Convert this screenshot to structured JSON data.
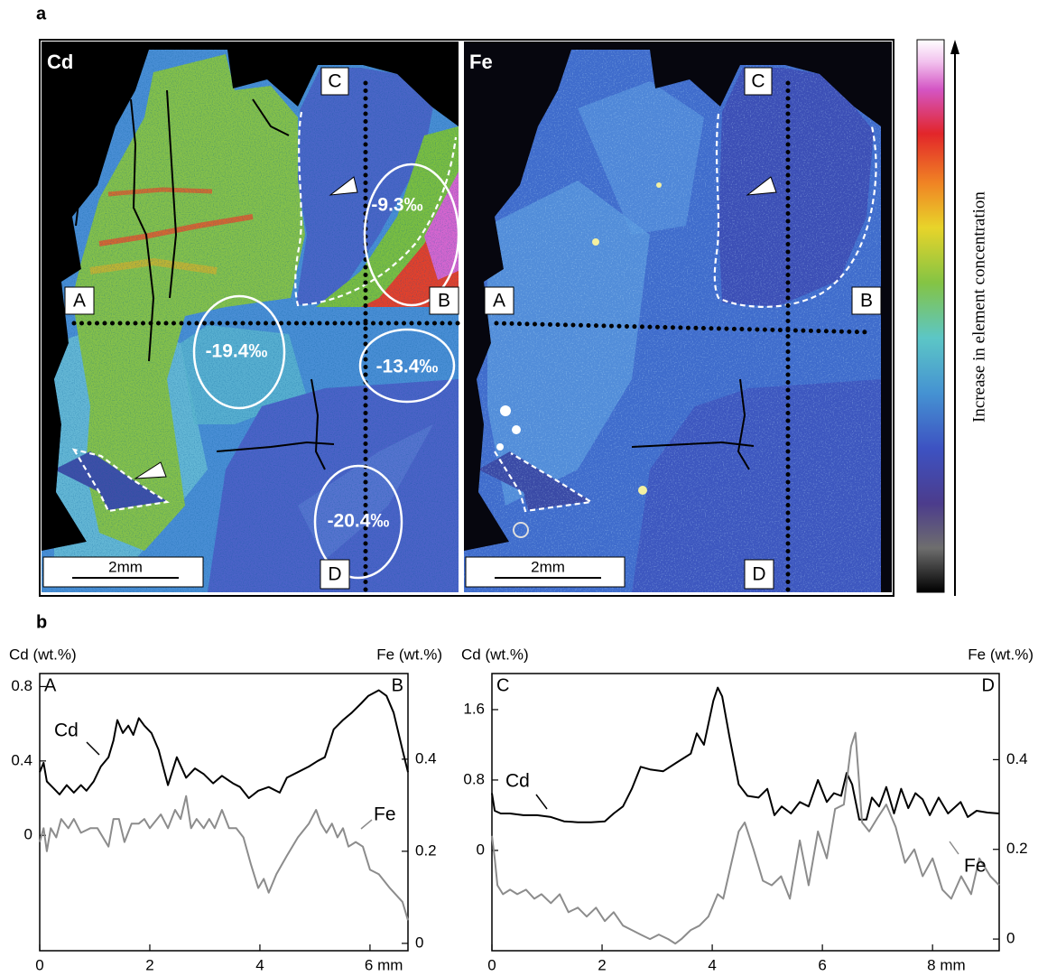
{
  "panel_labels": [
    "a",
    "b"
  ],
  "maps": [
    {
      "element": "Cd",
      "markers": [
        "A",
        "B",
        "C",
        "D"
      ],
      "scale_bar": "2mm",
      "isotope_values": [
        "-9.3‰",
        "-19.4‰",
        "-13.4‰",
        "-20.4‰"
      ]
    },
    {
      "element": "Fe",
      "markers": [
        "A",
        "B",
        "C",
        "D"
      ],
      "scale_bar": "2mm"
    }
  ],
  "colorbar_label": "Increase in element concentration",
  "chart_data": [
    {
      "type": "line",
      "y_label": "Cd (wt.%)",
      "y2_label": "Fe (wt.%)",
      "annotations": [
        "A",
        "B"
      ],
      "xlim": [
        0,
        6.69
      ],
      "xticks": [
        0,
        2,
        4,
        {
          "value": 6,
          "label": "6 mm"
        }
      ],
      "ylim": [
        -0.62,
        0.87
      ],
      "yticks": [
        0,
        0.4,
        0.8
      ],
      "y2lim": [
        -0.016,
        0.586
      ],
      "y2ticks": [
        0,
        0.2,
        0.4
      ],
      "series": [
        {
          "name": "Cd",
          "color": "#000000",
          "x": [
            0,
            0.07,
            0.13,
            0.23,
            0.36,
            0.49,
            0.62,
            0.75,
            0.85,
            0.98,
            1.11,
            1.25,
            1.34,
            1.41,
            1.51,
            1.61,
            1.7,
            1.8,
            1.9,
            2.03,
            2.16,
            2.33,
            2.49,
            2.66,
            2.82,
            2.98,
            3.15,
            3.31,
            3.51,
            3.64,
            3.8,
            3.97,
            4.16,
            4.36,
            4.49,
            4.69,
            4.89,
            5.05,
            5.18,
            5.34,
            5.51,
            5.67,
            5.84,
            5.97,
            6.16,
            6.3,
            6.43,
            6.59,
            6.69
          ],
          "values": [
            0.34,
            0.39,
            0.29,
            0.26,
            0.22,
            0.27,
            0.23,
            0.27,
            0.24,
            0.29,
            0.37,
            0.42,
            0.51,
            0.62,
            0.55,
            0.59,
            0.54,
            0.63,
            0.59,
            0.55,
            0.46,
            0.27,
            0.42,
            0.31,
            0.36,
            0.33,
            0.28,
            0.32,
            0.28,
            0.26,
            0.2,
            0.24,
            0.26,
            0.23,
            0.31,
            0.34,
            0.37,
            0.4,
            0.42,
            0.57,
            0.62,
            0.66,
            0.71,
            0.75,
            0.78,
            0.75,
            0.66,
            0.46,
            0.34
          ]
        },
        {
          "name": "Fe",
          "color": "#8c8c8c",
          "axis": "y2",
          "x": [
            0,
            0.07,
            0.13,
            0.2,
            0.3,
            0.39,
            0.52,
            0.62,
            0.75,
            0.92,
            1.05,
            1.25,
            1.34,
            1.44,
            1.54,
            1.67,
            1.8,
            1.9,
            2.0,
            2.2,
            2.33,
            2.46,
            2.56,
            2.66,
            2.75,
            2.85,
            2.98,
            3.08,
            3.18,
            3.31,
            3.44,
            3.57,
            3.7,
            3.84,
            3.97,
            4.07,
            4.16,
            4.3,
            4.49,
            4.69,
            4.89,
            5.02,
            5.11,
            5.21,
            5.31,
            5.41,
            5.51,
            5.61,
            5.74,
            5.87,
            6.0,
            6.16,
            6.36,
            6.59,
            6.69
          ],
          "values": [
            0.22,
            0.25,
            0.2,
            0.25,
            0.23,
            0.27,
            0.25,
            0.27,
            0.24,
            0.25,
            0.25,
            0.21,
            0.27,
            0.27,
            0.22,
            0.26,
            0.26,
            0.27,
            0.25,
            0.28,
            0.25,
            0.29,
            0.27,
            0.32,
            0.25,
            0.27,
            0.25,
            0.27,
            0.25,
            0.29,
            0.25,
            0.25,
            0.23,
            0.17,
            0.12,
            0.14,
            0.11,
            0.15,
            0.19,
            0.23,
            0.26,
            0.29,
            0.26,
            0.24,
            0.26,
            0.23,
            0.25,
            0.21,
            0.22,
            0.21,
            0.16,
            0.15,
            0.12,
            0.09,
            0.05
          ]
        }
      ]
    },
    {
      "type": "line",
      "y_label": "Cd (wt.%)",
      "y2_label": "Fe (wt.%)",
      "annotations": [
        "C",
        "D"
      ],
      "xlim": [
        0,
        9.21
      ],
      "xticks": [
        0,
        2,
        4,
        6,
        {
          "value": 8,
          "label": "8 mm"
        }
      ],
      "ylim": [
        -1.14,
        2.01
      ],
      "yticks": [
        0,
        0.8,
        1.6
      ],
      "y2lim": [
        -0.026,
        0.592
      ],
      "y2ticks": [
        0,
        0.2,
        0.4
      ],
      "series": [
        {
          "name": "Cd",
          "color": "#000000",
          "x": [
            0,
            0.05,
            0.16,
            0.33,
            0.57,
            0.82,
            1.07,
            1.31,
            1.56,
            1.8,
            2.05,
            2.21,
            2.38,
            2.54,
            2.7,
            2.87,
            3.11,
            3.36,
            3.61,
            3.72,
            3.85,
            4.02,
            4.1,
            4.18,
            4.31,
            4.48,
            4.64,
            4.84,
            5.0,
            5.13,
            5.26,
            5.43,
            5.59,
            5.75,
            5.92,
            6.08,
            6.21,
            6.34,
            6.44,
            6.54,
            6.67,
            6.8,
            6.9,
            7.03,
            7.16,
            7.3,
            7.43,
            7.56,
            7.69,
            7.82,
            7.95,
            8.11,
            8.28,
            8.51,
            8.64,
            8.8,
            9.0,
            9.21
          ],
          "values": [
            0.65,
            0.45,
            0.42,
            0.42,
            0.4,
            0.4,
            0.38,
            0.33,
            0.32,
            0.32,
            0.33,
            0.42,
            0.5,
            0.7,
            0.95,
            0.92,
            0.9,
            1.0,
            1.1,
            1.33,
            1.2,
            1.7,
            1.85,
            1.75,
            1.3,
            0.75,
            0.62,
            0.6,
            0.7,
            0.4,
            0.5,
            0.42,
            0.55,
            0.5,
            0.8,
            0.55,
            0.65,
            0.62,
            0.88,
            0.75,
            0.35,
            0.35,
            0.6,
            0.5,
            0.72,
            0.42,
            0.7,
            0.48,
            0.65,
            0.58,
            0.4,
            0.6,
            0.42,
            0.55,
            0.38,
            0.45,
            0.43,
            0.42
          ]
        },
        {
          "name": "Fe",
          "color": "#8c8c8c",
          "axis": "y2",
          "x": [
            0,
            0.05,
            0.1,
            0.2,
            0.33,
            0.46,
            0.62,
            0.77,
            0.9,
            1.07,
            1.23,
            1.39,
            1.56,
            1.72,
            1.89,
            2.05,
            2.21,
            2.38,
            2.54,
            2.7,
            2.87,
            3.03,
            3.2,
            3.33,
            3.44,
            3.61,
            3.77,
            3.93,
            4.1,
            4.2,
            4.33,
            4.48,
            4.59,
            4.75,
            4.92,
            5.08,
            5.25,
            5.41,
            5.59,
            5.75,
            5.92,
            6.08,
            6.23,
            6.39,
            6.52,
            6.6,
            6.72,
            6.85,
            7.0,
            7.16,
            7.33,
            7.5,
            7.67,
            7.82,
            8.0,
            8.18,
            8.34,
            8.52,
            8.7,
            8.85,
            9.05,
            9.21
          ],
          "values": [
            0.23,
            0.18,
            0.12,
            0.1,
            0.11,
            0.1,
            0.11,
            0.09,
            0.1,
            0.08,
            0.1,
            0.06,
            0.07,
            0.05,
            0.07,
            0.04,
            0.06,
            0.03,
            0.02,
            0.01,
            0,
            0.01,
            0,
            -0.01,
            0,
            0.02,
            0.03,
            0.05,
            0.1,
            0.09,
            0.16,
            0.24,
            0.26,
            0.2,
            0.13,
            0.12,
            0.14,
            0.09,
            0.22,
            0.12,
            0.24,
            0.18,
            0.29,
            0.3,
            0.43,
            0.46,
            0.26,
            0.24,
            0.27,
            0.3,
            0.25,
            0.17,
            0.2,
            0.14,
            0.18,
            0.11,
            0.09,
            0.14,
            0.1,
            0.18,
            0.14,
            0.12
          ]
        }
      ]
    }
  ]
}
